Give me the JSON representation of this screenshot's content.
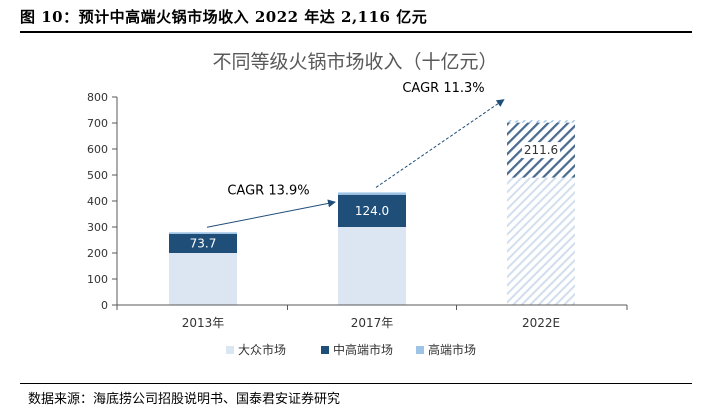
{
  "figure_title": "图 10：预计中高端火锅市场收入 2022 年达 2,116 亿元",
  "source_note": "数据来源：海底捞公司招股说明书、国泰君安证券研究",
  "chart_data": {
    "type": "bar",
    "stacked": true,
    "title": "不同等级火锅市场收入（十亿元）",
    "categories": [
      "2013年",
      "2017年",
      "2022E"
    ],
    "series": [
      {
        "name": "大众市场",
        "values": [
          200,
          300,
          490
        ],
        "color": "#dce6f2",
        "forecast_pattern": "#d3deed"
      },
      {
        "name": "中高端市场",
        "values": [
          73.7,
          124.0,
          211.6
        ],
        "color": "#1f4e79",
        "forecast_pattern": "#4a6b8f"
      },
      {
        "name": "高端市场",
        "values": [
          6,
          9,
          9
        ],
        "color": "#9dc3e6",
        "forecast_pattern": "#9dc3e6"
      }
    ],
    "data_labels": [
      "73.7",
      "124.0",
      "211.6"
    ],
    "yticks": [
      0,
      100,
      200,
      300,
      400,
      500,
      600,
      700,
      800
    ],
    "ylim": [
      0,
      800
    ],
    "grid": false,
    "legend_position": "bottom",
    "annotations": [
      {
        "text": "CAGR 13.9%",
        "from": "2013年",
        "to": "2017年"
      },
      {
        "text": "CAGR 11.3%",
        "from": "2017年",
        "to": "2022E"
      }
    ],
    "colors": {
      "axis": "#595959",
      "arrow": "#1f4e79",
      "title": "#595959"
    }
  }
}
